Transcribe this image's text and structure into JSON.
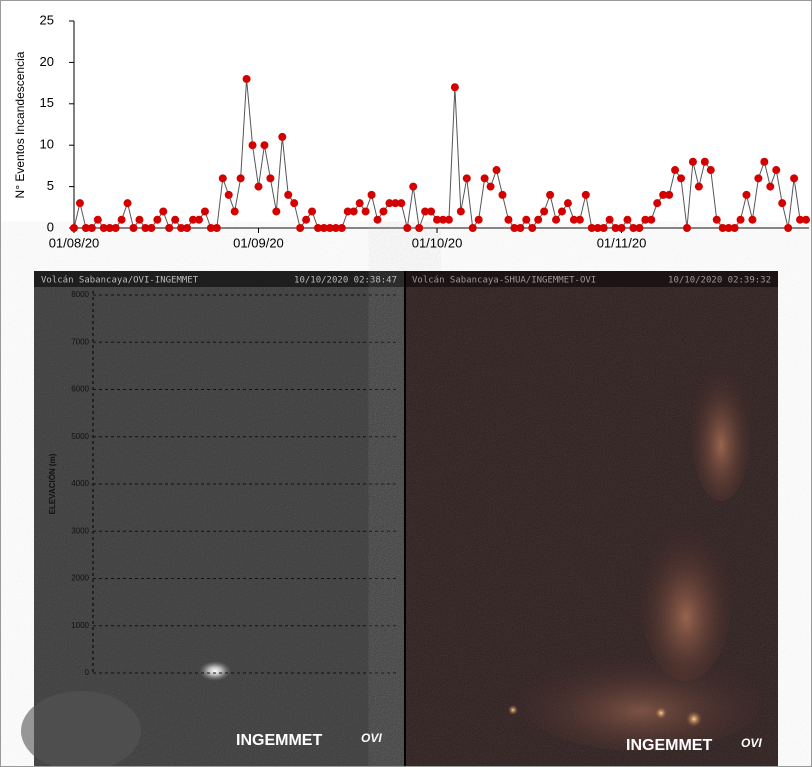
{
  "chart_data": {
    "type": "line",
    "y_label": "N° Eventos Incandescencia",
    "categories": [
      "01/08/20",
      null,
      null,
      null,
      null,
      null,
      null,
      null,
      null,
      null,
      null,
      null,
      null,
      null,
      null,
      null,
      null,
      null,
      null,
      null,
      null,
      null,
      null,
      null,
      null,
      null,
      null,
      null,
      null,
      null,
      null,
      "01/09/20",
      null,
      null,
      null,
      null,
      null,
      null,
      null,
      null,
      null,
      null,
      null,
      null,
      null,
      null,
      null,
      null,
      null,
      null,
      null,
      null,
      null,
      null,
      null,
      null,
      null,
      null,
      null,
      null,
      null,
      "01/10/20",
      null,
      null,
      null,
      null,
      null,
      null,
      null,
      null,
      null,
      null,
      null,
      null,
      null,
      null,
      null,
      null,
      null,
      null,
      null,
      null,
      null,
      null,
      null,
      null,
      null,
      null,
      null,
      null,
      null,
      null,
      "01/11/20",
      null,
      null,
      null,
      null,
      null,
      null,
      null,
      null,
      null,
      null,
      null,
      null,
      null,
      null,
      null,
      null,
      null,
      null,
      null,
      null,
      null,
      null,
      null,
      null,
      null,
      null,
      null,
      null,
      null,
      null,
      null
    ],
    "series": [
      {
        "name": null,
        "color": "#d40000",
        "line_color": "#555555",
        "values": [
          0,
          3,
          0,
          0,
          1,
          0,
          0,
          0,
          1,
          3,
          0,
          1,
          0,
          0,
          1,
          2,
          0,
          1,
          0,
          0,
          1,
          1,
          2,
          0,
          0,
          6,
          4,
          2,
          6,
          18,
          10,
          5,
          10,
          6,
          2,
          11,
          4,
          3,
          0,
          1,
          2,
          0,
          0,
          0,
          0,
          0,
          2,
          2,
          3,
          2,
          4,
          1,
          2,
          3,
          3,
          3,
          0,
          5,
          0,
          2,
          2,
          1,
          1,
          1,
          17,
          2,
          6,
          0,
          1,
          6,
          5,
          7,
          4,
          1,
          0,
          0,
          1,
          0,
          1,
          2,
          4,
          1,
          2,
          3,
          1,
          1,
          4,
          0,
          0,
          0,
          1,
          0,
          0,
          1,
          0,
          0,
          1,
          1,
          3,
          4,
          4,
          7,
          6,
          0,
          8,
          5,
          8,
          7,
          1,
          0,
          0,
          0,
          1,
          4,
          1,
          6,
          8,
          5,
          7,
          3,
          0,
          6,
          1,
          1
        ]
      }
    ],
    "ylim": [
      0,
      25
    ],
    "yticks": [
      0,
      5,
      10,
      15,
      20,
      25
    ],
    "grid": false
  },
  "cameras": [
    {
      "title": "Volcán Sabancaya/OVI-INGEMMET",
      "timestamp": "10/10/2020 02:38:47",
      "axis_label": "ELEVACIÓN (m)",
      "elevation_ticks": [
        0,
        1000,
        2000,
        3000,
        4000,
        5000,
        6000,
        7000,
        8000
      ],
      "logo": "INGEMMET",
      "logo2": "OVI"
    },
    {
      "title": "Volcán Sabancaya-SHUA/INGEMMET-OVI",
      "timestamp": "10/10/2020 02:39:32",
      "logo": "INGEMMET",
      "logo2": "OVI"
    }
  ]
}
